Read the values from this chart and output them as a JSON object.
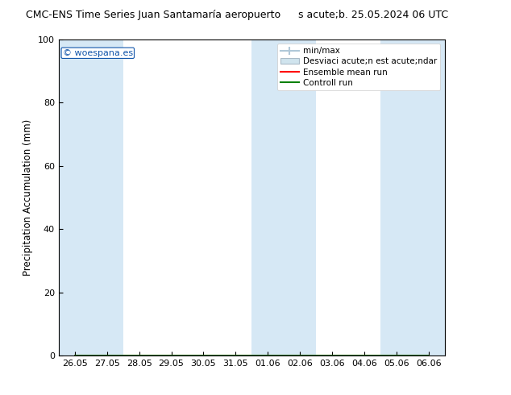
{
  "title_left": "CMC-ENS Time Series Juan Santamaría aeropuerto",
  "title_right": "s acute;b. 25.05.2024 06 UTC",
  "ylabel": "Precipitation Accumulation (mm)",
  "ylim": [
    0,
    100
  ],
  "yticks": [
    0,
    20,
    40,
    60,
    80,
    100
  ],
  "x_labels": [
    "26.05",
    "27.05",
    "28.05",
    "29.05",
    "30.05",
    "31.05",
    "01.06",
    "02.06",
    "03.06",
    "04.06",
    "05.06",
    "06.06"
  ],
  "shaded_indices": [
    0,
    1,
    6,
    7,
    10,
    11
  ],
  "shade_color": "#d6e8f5",
  "bg_color": "#ffffff",
  "plot_bg_color": "#ffffff",
  "watermark": "© woespana.es",
  "minmax_color": "#b0c8d8",
  "std_color": "#d0e4ee",
  "legend_labels": [
    "min/max",
    "Desviaci acute;n est acute;ndar",
    "Ensemble mean run",
    "Controll run"
  ],
  "n_points": 12,
  "ensemble_mean": [
    0,
    0,
    0,
    0,
    0,
    0,
    0,
    0,
    0,
    0,
    0,
    0
  ],
  "control_run": [
    0,
    0,
    0,
    0,
    0,
    0,
    0,
    0,
    0,
    0,
    0,
    0
  ],
  "min_vals": [
    0,
    0,
    0,
    0,
    0,
    0,
    0,
    0,
    0,
    0,
    0,
    0
  ],
  "max_vals": [
    0,
    0,
    0,
    0,
    0,
    0,
    0,
    0,
    0,
    0,
    0,
    0
  ],
  "std_low": [
    0,
    0,
    0,
    0,
    0,
    0,
    0,
    0,
    0,
    0,
    0,
    0
  ],
  "std_high": [
    0,
    0,
    0,
    0,
    0,
    0,
    0,
    0,
    0,
    0,
    0,
    0
  ]
}
